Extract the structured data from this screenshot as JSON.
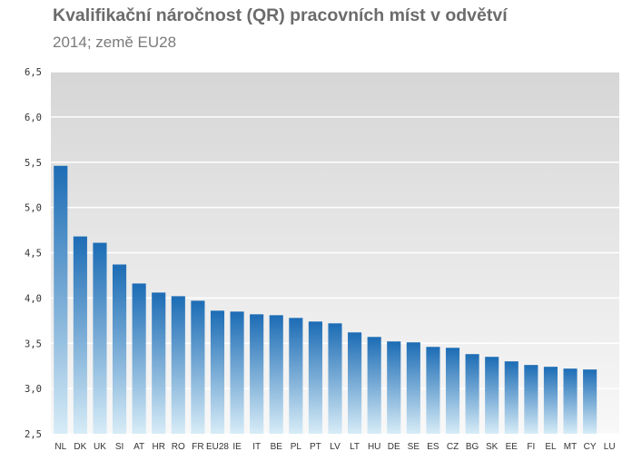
{
  "title": "Kvalifikační náročnost (QR)  pracovních míst v odvětví",
  "subtitle": "2014; země EU28",
  "colors": {
    "bar_top": "#1c6cb5",
    "bar_bottom": "#d7ecf7",
    "plot_bg_top": "#d6d6d6",
    "plot_bg_bottom": "#f8f8f8",
    "grid": "#ffffff",
    "text": "#333333"
  },
  "chart_data": {
    "type": "bar",
    "title": "Kvalifikační náročnost (QR)  pracovních míst v odvětví",
    "subtitle": "2014; země EU28",
    "xlabel": "",
    "ylabel": "",
    "ylim": [
      2.5,
      6.5
    ],
    "yticks": [
      "2,5",
      "3,0",
      "3,5",
      "4,0",
      "4,5",
      "5,0",
      "5,5",
      "6,0",
      "6,5"
    ],
    "ytick_values": [
      2.5,
      3.0,
      3.5,
      4.0,
      4.5,
      5.0,
      5.5,
      6.0,
      6.5
    ],
    "grid": true,
    "legend": "none",
    "categories": [
      "NL",
      "DK",
      "UK",
      "SI",
      "AT",
      "HR",
      "RO",
      "FR",
      "EU28",
      "IE",
      "IT",
      "BE",
      "PL",
      "PT",
      "LV",
      "LT",
      "HU",
      "DE",
      "SE",
      "ES",
      "CZ",
      "BG",
      "SK",
      "EE",
      "FI",
      "EL",
      "MT",
      "CY",
      "LU"
    ],
    "values": [
      5.46,
      4.68,
      4.61,
      4.37,
      4.16,
      4.06,
      4.02,
      3.97,
      3.86,
      3.85,
      3.82,
      3.81,
      3.78,
      3.74,
      3.72,
      3.62,
      3.57,
      3.52,
      3.51,
      3.46,
      3.45,
      3.38,
      3.35,
      3.3,
      3.26,
      3.24,
      3.22,
      3.21,
      null
    ]
  }
}
